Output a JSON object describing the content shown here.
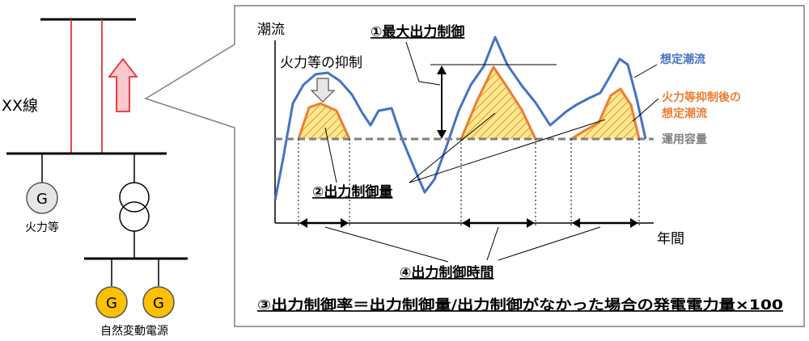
{
  "colors": {
    "line": "#000000",
    "assumed_flow": "#4472C4",
    "suppressed_flow": "#ED7D31",
    "capacity": "#7F7F7F",
    "hatch_fill": "#FFE699",
    "arrow_red": "#E8303A",
    "arrow_fill": "#F8C8CC",
    "generator_renewable": "#FFC000",
    "generator_thermal": "#E6E6E6",
    "border": "#7F7F7F"
  },
  "left": {
    "line_label": "XX線",
    "thermal_gen_symbol": "G",
    "thermal_gen_label": "火力等",
    "renewable_gen_symbols": [
      "G",
      "G"
    ],
    "renewable_label": "自然変動電源"
  },
  "chart": {
    "y_axis_label": "潮流",
    "x_axis_label": "年間",
    "annotation_max_control": "①最大出力制御",
    "annotation_thermal_suppress": "火力等の抑制",
    "annotation_control_amount": "②出力制御量",
    "annotation_control_time": "④出力制御時間",
    "legend_assumed": "想定潮流",
    "legend_after_line1": "火力等抑制後の",
    "legend_after_line2": "想定潮流",
    "legend_capacity": "運用容量",
    "formula": "③出力制御率＝出力制御量/出力制御がなかった場合の発電電力量×100"
  }
}
